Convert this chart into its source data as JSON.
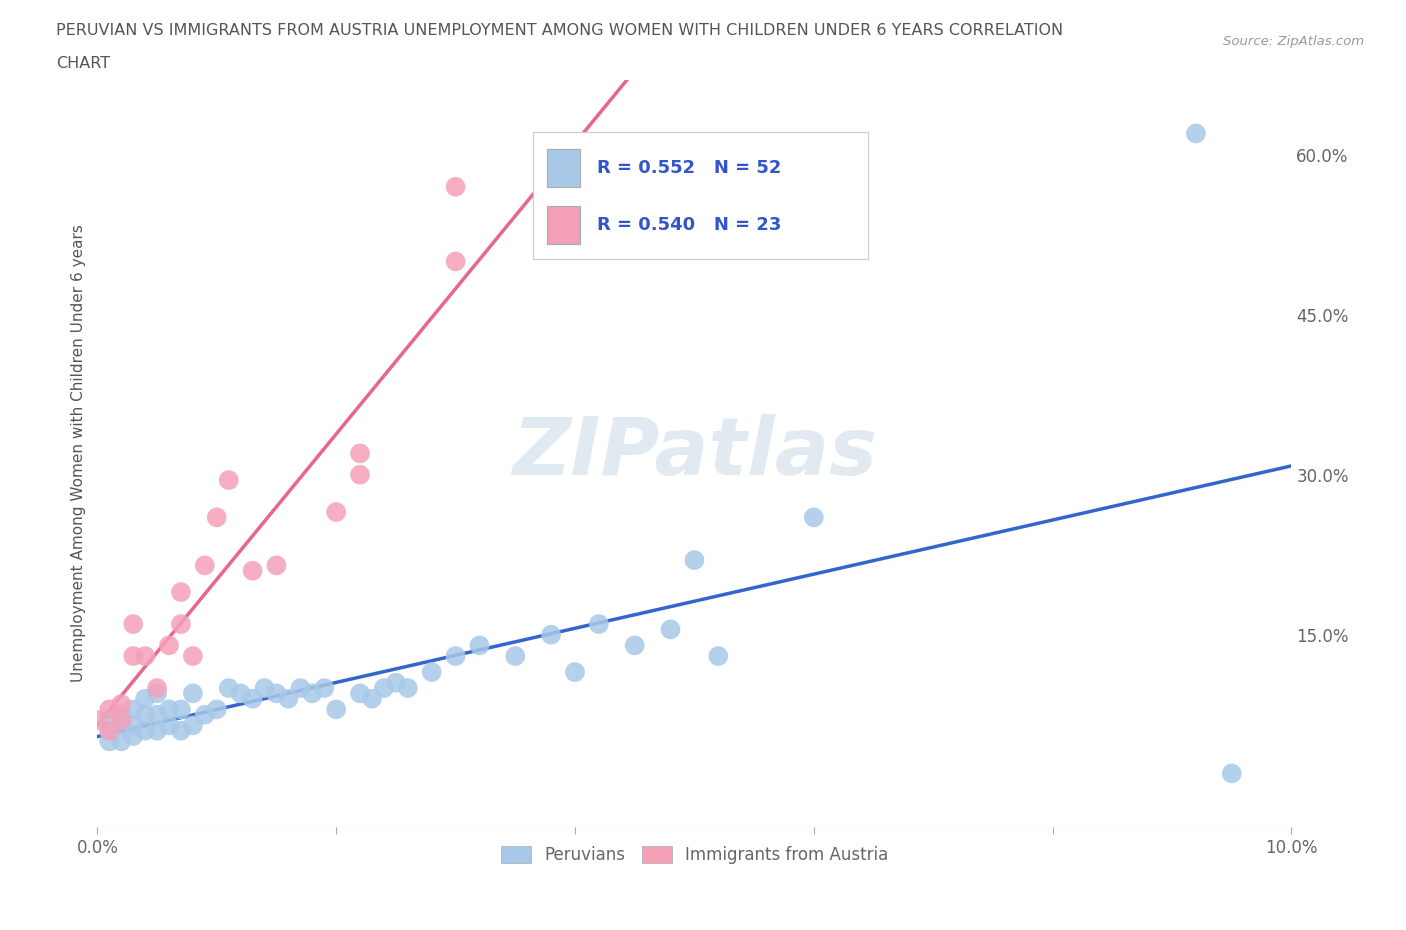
{
  "title_line1": "PERUVIAN VS IMMIGRANTS FROM AUSTRIA UNEMPLOYMENT AMONG WOMEN WITH CHILDREN UNDER 6 YEARS CORRELATION",
  "title_line2": "CHART",
  "source": "Source: ZipAtlas.com",
  "ylabel": "Unemployment Among Women with Children Under 6 years",
  "xlim": [
    0.0,
    0.1
  ],
  "ylim": [
    -0.03,
    0.67
  ],
  "ytick_right_positions": [
    0.0,
    0.15,
    0.3,
    0.45,
    0.6
  ],
  "ytick_right_labels": [
    "",
    "15.0%",
    "30.0%",
    "45.0%",
    "60.0%"
  ],
  "peruvian_color": "#a8c8e8",
  "austria_color": "#f4a0b8",
  "peruvian_line_color": "#3366cc",
  "austria_line_color": "#e8668a",
  "peruvian_R": 0.552,
  "peruvian_N": 52,
  "austria_R": 0.54,
  "austria_N": 23,
  "legend_label_peruvian": "Peruvians",
  "legend_label_austria": "Immigrants from Austria",
  "peruvian_x": [
    0.001,
    0.001,
    0.001,
    0.002,
    0.002,
    0.002,
    0.003,
    0.003,
    0.003,
    0.004,
    0.004,
    0.004,
    0.005,
    0.005,
    0.005,
    0.006,
    0.006,
    0.007,
    0.007,
    0.008,
    0.008,
    0.009,
    0.01,
    0.011,
    0.012,
    0.013,
    0.014,
    0.015,
    0.016,
    0.017,
    0.018,
    0.019,
    0.02,
    0.022,
    0.023,
    0.024,
    0.025,
    0.026,
    0.028,
    0.03,
    0.032,
    0.035,
    0.038,
    0.04,
    0.042,
    0.045,
    0.048,
    0.05,
    0.052,
    0.06,
    0.092,
    0.095
  ],
  "peruvian_y": [
    0.05,
    0.06,
    0.07,
    0.05,
    0.065,
    0.075,
    0.055,
    0.065,
    0.08,
    0.06,
    0.075,
    0.09,
    0.06,
    0.075,
    0.095,
    0.065,
    0.08,
    0.06,
    0.08,
    0.065,
    0.095,
    0.075,
    0.08,
    0.1,
    0.095,
    0.09,
    0.1,
    0.095,
    0.09,
    0.1,
    0.095,
    0.1,
    0.08,
    0.095,
    0.09,
    0.1,
    0.105,
    0.1,
    0.115,
    0.13,
    0.14,
    0.13,
    0.15,
    0.115,
    0.16,
    0.14,
    0.155,
    0.22,
    0.13,
    0.26,
    0.62,
    0.02
  ],
  "austria_x": [
    0.0,
    0.001,
    0.001,
    0.002,
    0.002,
    0.003,
    0.003,
    0.004,
    0.005,
    0.006,
    0.007,
    0.007,
    0.008,
    0.009,
    0.01,
    0.011,
    0.013,
    0.015,
    0.02,
    0.022,
    0.022,
    0.03,
    0.03
  ],
  "austria_y": [
    0.07,
    0.06,
    0.08,
    0.07,
    0.085,
    0.13,
    0.16,
    0.13,
    0.1,
    0.14,
    0.16,
    0.19,
    0.13,
    0.215,
    0.26,
    0.295,
    0.21,
    0.215,
    0.265,
    0.3,
    0.32,
    0.5,
    0.57
  ],
  "background_color": "#ffffff",
  "grid_color": "#dddddd",
  "title_color": "#555555",
  "source_color": "#999999",
  "axis_label_color": "#555555",
  "tick_label_color": "#666666",
  "legend_text_color": "#3355cc"
}
